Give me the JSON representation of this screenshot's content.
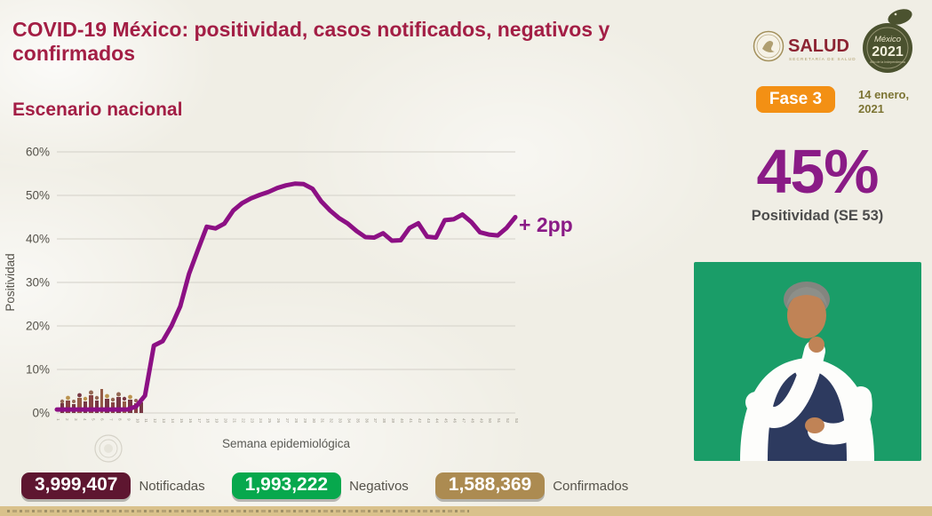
{
  "header": {
    "title": "COVID-19 México: positividad, casos notificados, negativos y confirmados",
    "subtitle": "Escenario nacional",
    "salud": {
      "name": "SALUD",
      "caption": "SECRETARÍA DE SALUD"
    },
    "mexico2021": {
      "line1": "México",
      "line2": "2021",
      "line3": "Año de la Independencia"
    },
    "fase_badge": "Fase 3",
    "date_line1": "14 enero,",
    "date_line2": "2021"
  },
  "chart_data": {
    "type": "line",
    "title": "Escenario nacional",
    "xlabel": "Semana epidemiológica",
    "ylabel": "Positividad",
    "x": [
      1,
      2,
      3,
      4,
      5,
      6,
      7,
      8,
      9,
      10,
      11,
      12,
      13,
      14,
      15,
      16,
      17,
      18,
      19,
      20,
      21,
      22,
      23,
      24,
      25,
      26,
      27,
      28,
      29,
      30,
      31,
      32,
      33,
      34,
      35,
      36,
      37,
      38,
      39,
      40,
      41,
      42,
      43,
      44,
      45,
      46,
      47,
      48,
      49,
      50,
      51,
      52,
      53
    ],
    "series": [
      {
        "name": "Positividad",
        "values": [
          0.8,
          0.8,
          0.8,
          0.8,
          0.8,
          0.8,
          0.8,
          0.8,
          0.8,
          1.5,
          4,
          15.5,
          16.5,
          20,
          24.5,
          32,
          37.5,
          42.8,
          42.4,
          43.5,
          46.5,
          48.2,
          49.3,
          50.1,
          50.8,
          51.7,
          52.3,
          52.7,
          52.6,
          51.5,
          48.6,
          46.5,
          44.8,
          43.5,
          41.8,
          40.4,
          40.3,
          41.3,
          39.6,
          39.7,
          42.5,
          43.6,
          40.5,
          40.3,
          44.3,
          44.5,
          45.6,
          43.9,
          41.5,
          41,
          40.8,
          42.5,
          45
        ]
      }
    ],
    "ylim": [
      0,
      60
    ],
    "yticks": [
      "0%",
      "10%",
      "20%",
      "30%",
      "40%",
      "50%",
      "60%"
    ],
    "grid": true,
    "legend": false,
    "annotation": "+ 2pp",
    "line_color": "#8c1084"
  },
  "highlight": {
    "value": "45%",
    "label": "Positividad (SE 53)"
  },
  "stats": [
    {
      "value": "3,999,407",
      "label": "Notificadas",
      "color": "#5e1630"
    },
    {
      "value": "1,993,222",
      "label": "Negativos",
      "color": "#07a84d"
    },
    {
      "value": "1,588,369",
      "label": "Confirmados",
      "color": "#ac8b51"
    }
  ],
  "colors": {
    "title": "#a31e45",
    "accent_purple": "#8a1b86",
    "fase_orange": "#f39014",
    "interpreter_green": "#1a9d68",
    "footer_tan": "#d9c18b",
    "background": "#f0eee5"
  }
}
